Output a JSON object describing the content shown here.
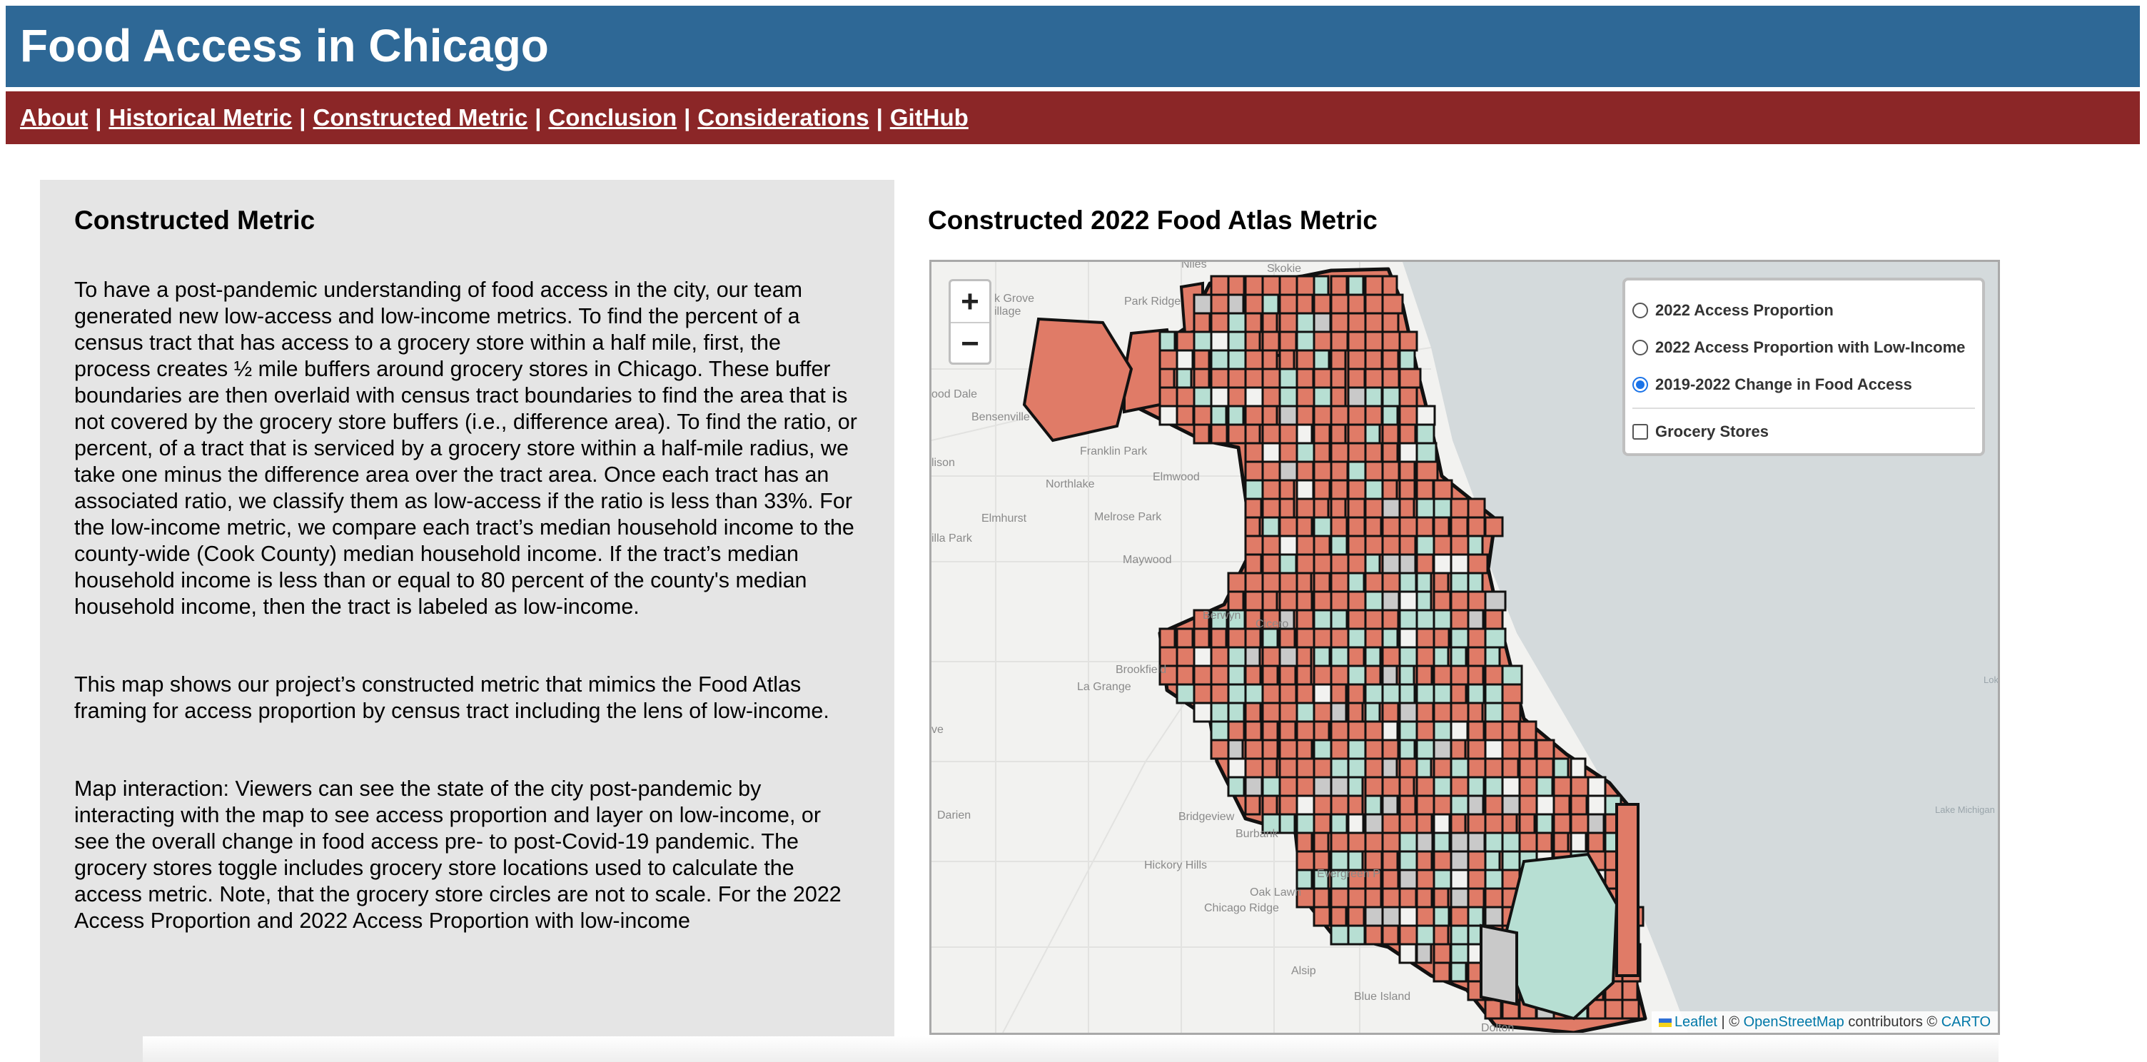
{
  "header": {
    "title": "Food Access in Chicago"
  },
  "nav": {
    "items": [
      {
        "label": "About"
      },
      {
        "label": "Historical Metric"
      },
      {
        "label": "Constructed Metric"
      },
      {
        "label": "Conclusion"
      },
      {
        "label": "Considerations"
      },
      {
        "label": "GitHub"
      }
    ],
    "separator": "|"
  },
  "panel": {
    "title": "Constructed Metric",
    "paragraphs": [
      "To have a post-pandemic understanding of food access in the city, our team generated new low-access and low-income metrics. To find the percent of a census tract that has access to a grocery store within a half mile, first, the process creates ½ mile buffers around grocery stores in Chicago. These buffer boundaries are then overlaid with census tract boundaries to find the area that is not covered by the grocery store buffers (i.e., difference area). To find the ratio, or percent, of a tract that is serviced by a grocery store within a half-mile radius, we take one minus the difference area over the tract area. Once each tract has an associated ratio, we classify them as low-access if the ratio is less than 33%. For the low-income metric, we compare each tract’s median household income to the county-wide (Cook County) median household income. If the tract’s median household income is less than or equal to 80 percent of the county's median household income, then the tract is labeled as low-income.",
      "This map shows our project’s constructed metric that mimics the Food Atlas framing for access proportion by census tract including the lens of low-income.",
      "Map interaction: Viewers can see the state of the city post-pandemic by interacting with the map to see access proportion and layer on low-income, or see the overall change in food access pre- to post-Covid-19 pandemic. The grocery stores toggle includes grocery store locations used to calculate the access metric. Note, that the grocery store circles are not to scale. For the 2022 Access Proportion and 2022 Access Proportion with low-income"
    ]
  },
  "map": {
    "title": "Constructed 2022 Food Atlas Metric",
    "zoom_in": "+",
    "zoom_out": "−",
    "layers": [
      {
        "label": "2022 Access Proportion",
        "selected": false
      },
      {
        "label": "2022 Access Proportion with Low-Income",
        "selected": false
      },
      {
        "label": "2019-2022 Change in Food Access",
        "selected": true
      }
    ],
    "overlay": {
      "label": "Grocery Stores",
      "checked": false
    },
    "attribution": {
      "leaflet": "Leaflet",
      "sep": " | © ",
      "osm": "OpenStreetMap",
      "contrib": " contributors © ",
      "carto": "CARTO"
    },
    "places": [
      "Niles",
      "Skokie",
      "Park Ridge",
      "k Grove",
      "illage",
      "ood Dale",
      "Bensenville",
      "Franklin Park",
      "lison",
      "Northlake",
      "Elmwood",
      "Elmhurst",
      "Melrose Park",
      "illa Park",
      "Maywood",
      "Berwyn",
      "Cicero",
      "Brookfield",
      "La Grange",
      "Darien",
      "Bridgeview",
      "Burbank",
      "Hickory Hills",
      "Evergreen P",
      "Oak Lawn",
      "Chicago Ridge",
      "Alsip",
      "Blue Island",
      "Lake Michigan",
      "Lok",
      "Dolton",
      "ve"
    ],
    "colors": {
      "decrease": "#e07b67",
      "increase": "#b7dfd3",
      "nochange": "#c9c9c9",
      "water": "#d4dadc",
      "land": "#f2f2f0",
      "border": "#111111"
    }
  }
}
